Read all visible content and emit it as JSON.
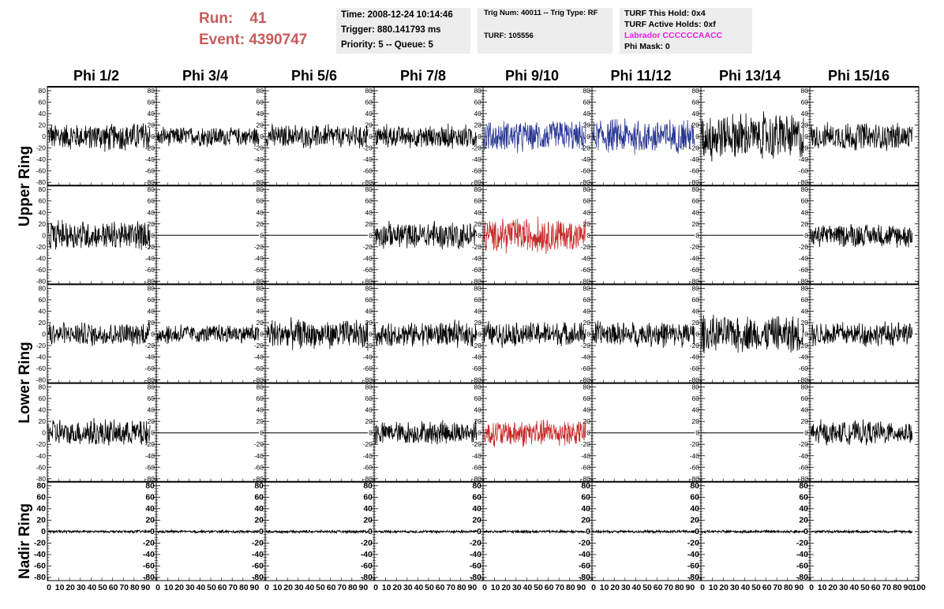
{
  "header": {
    "run_label": "Run:",
    "run_value": "41",
    "event_label": "Event:",
    "event_value": "4390747",
    "time": "Time: 2008-12-24 10:14:46",
    "trigger": "Trigger: 880.141793 ms",
    "priority": "Priority: 5 -- Queue: 5",
    "trig_num": "Trig Num: 40011 -- Trig Type: RF",
    "turf": "TURF: 105556",
    "turf_hold": "TURF This Hold: 0x4",
    "turf_active": "TURF Active Holds: 0xf",
    "labrador": "Labrador CCCCCCAACC",
    "phi_mask": "Phi Mask: 0"
  },
  "colors": {
    "run_text": "#c85a5a",
    "labrador": "#e020e0",
    "blue_trace": "#283593",
    "red_trace": "#c62828",
    "black_trace": "#000000"
  },
  "phi_headers": [
    "Phi 1/2",
    "Phi 3/4",
    "Phi 5/6",
    "Phi 7/8",
    "Phi 9/10",
    "Phi 11/12",
    "Phi 13/14",
    "Phi 15/16"
  ],
  "ring_labels": [
    "Upper Ring",
    "Lower Ring",
    "Nadir Ring"
  ],
  "chart_data": {
    "type": "line",
    "grid": false,
    "xlim": [
      0,
      100
    ],
    "ylim": [
      -80,
      80
    ],
    "x_ticks": [
      0,
      10,
      20,
      30,
      40,
      50,
      60,
      70,
      80,
      90,
      100
    ],
    "y_ticks": [
      80,
      60,
      40,
      20,
      0,
      -20,
      -40,
      -60,
      -80
    ],
    "rows": [
      {
        "ring": "Upper Ring",
        "amplitudes": [
          14,
          10,
          12,
          12,
          16,
          17,
          24,
          14
        ],
        "colors": [
          "black",
          "black",
          "black",
          "black",
          "blue",
          "blue",
          "black",
          "black"
        ]
      },
      {
        "ring": "Upper Ring",
        "amplitudes": [
          15,
          0,
          0,
          14,
          17,
          0,
          0,
          12
        ],
        "colors": [
          "black",
          "black",
          "black",
          "black",
          "red",
          "black",
          "black",
          "black"
        ]
      },
      {
        "ring": "Lower Ring",
        "amplitudes": [
          12,
          10,
          15,
          13,
          12,
          13,
          19,
          12
        ],
        "colors": [
          "black",
          "black",
          "black",
          "black",
          "black",
          "black",
          "black",
          "black"
        ]
      },
      {
        "ring": "Lower Ring",
        "amplitudes": [
          14,
          0,
          0,
          12,
          14,
          0,
          0,
          12
        ],
        "colors": [
          "black",
          "black",
          "black",
          "black",
          "red",
          "black",
          "black",
          "black"
        ]
      },
      {
        "ring": "Nadir Ring",
        "amplitudes": [
          1.2,
          1.2,
          1.2,
          1.2,
          1.2,
          1.2,
          1.2,
          1.2
        ],
        "colors": [
          "black",
          "black",
          "black",
          "black",
          "black",
          "black",
          "black",
          "black"
        ]
      }
    ]
  }
}
